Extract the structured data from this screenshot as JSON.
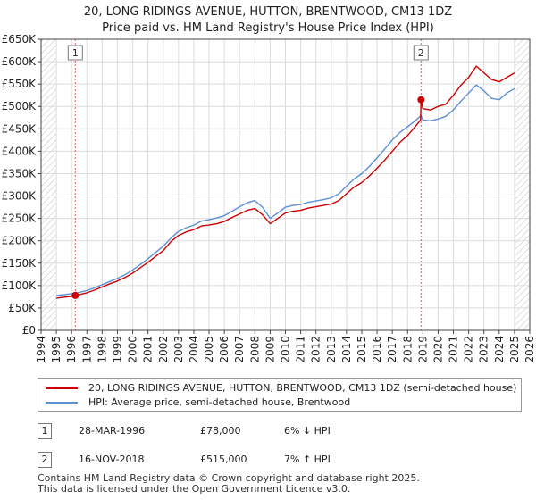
{
  "title": "20, LONG RIDINGS AVENUE, HUTTON, BRENTWOOD, CM13 1DZ",
  "subtitle": "Price paid vs. HM Land Registry's House Price Index (HPI)",
  "colors": {
    "property": "#cc0000",
    "hpi": "#5b8fd6",
    "grid": "#dcdcdc",
    "hatch": "#bbbbbb"
  },
  "legend": {
    "property_label": "20, LONG RIDINGS AVENUE, HUTTON, BRENTWOOD, CM13 1DZ (semi-detached house)",
    "hpi_label": "HPI: Average price, semi-detached house, Brentwood"
  },
  "transactions": [
    {
      "marker": "1",
      "date": "28-MAR-1996",
      "price": "£78,000",
      "hpi_change": "6% ↓ HPI"
    },
    {
      "marker": "2",
      "date": "16-NOV-2018",
      "price": "£515,000",
      "hpi_change": "7% ↑ HPI"
    }
  ],
  "footer": {
    "line1": "Contains HM Land Registry data © Crown copyright and database right 2025.",
    "line2": "This data is licensed under the Open Government Licence v3.0."
  },
  "chart_data": {
    "type": "line",
    "title": "20, LONG RIDINGS AVENUE, HUTTON, BRENTWOOD, CM13 1DZ",
    "subtitle": "Price paid vs. HM Land Registry's House Price Index (HPI)",
    "xlabel": "",
    "ylabel": "",
    "xlim": [
      1994,
      2026
    ],
    "ylim": [
      0,
      650000
    ],
    "x_ticks": [
      1994,
      1995,
      1996,
      1997,
      1998,
      1999,
      2000,
      2001,
      2002,
      2003,
      2004,
      2005,
      2006,
      2007,
      2008,
      2009,
      2010,
      2011,
      2012,
      2013,
      2014,
      2015,
      2016,
      2017,
      2018,
      2019,
      2020,
      2021,
      2022,
      2023,
      2024,
      2025,
      2026
    ],
    "y_ticks": [
      0,
      50000,
      100000,
      150000,
      200000,
      250000,
      300000,
      350000,
      400000,
      450000,
      500000,
      550000,
      600000,
      650000
    ],
    "y_tick_labels": [
      "£0",
      "£50K",
      "£100K",
      "£150K",
      "£200K",
      "£250K",
      "£300K",
      "£350K",
      "£400K",
      "£450K",
      "£500K",
      "£550K",
      "£600K",
      "£650K"
    ],
    "grid": true,
    "hatched_ranges": [
      [
        1994,
        1995.0
      ],
      [
        2025.0,
        2026
      ]
    ],
    "sale_points": [
      {
        "label": "1",
        "x": 1996.24,
        "y": 78000
      },
      {
        "label": "2",
        "x": 2018.88,
        "y": 515000
      }
    ],
    "series": [
      {
        "name": "20, LONG RIDINGS AVENUE, HUTTON, BRENTWOOD, CM13 1DZ (semi-detached house)",
        "color": "#cc0000",
        "x": [
          1995.0,
          1995.5,
          1996.0,
          1996.24,
          1996.5,
          1997.0,
          1997.5,
          1998.0,
          1998.5,
          1999.0,
          1999.5,
          2000.0,
          2000.5,
          2001.0,
          2001.5,
          2002.0,
          2002.5,
          2003.0,
          2003.5,
          2004.0,
          2004.5,
          2005.0,
          2005.5,
          2006.0,
          2006.5,
          2007.0,
          2007.5,
          2008.0,
          2008.5,
          2009.0,
          2009.5,
          2010.0,
          2010.5,
          2011.0,
          2011.5,
          2012.0,
          2012.5,
          2013.0,
          2013.5,
          2014.0,
          2014.5,
          2015.0,
          2015.5,
          2016.0,
          2016.5,
          2017.0,
          2017.5,
          2018.0,
          2018.5,
          2018.85,
          2018.88,
          2019.0,
          2019.5,
          2020.0,
          2020.5,
          2021.0,
          2021.5,
          2022.0,
          2022.5,
          2023.0,
          2023.5,
          2024.0,
          2024.5,
          2025.0
        ],
        "y": [
          72000,
          74000,
          76000,
          78000,
          80000,
          84000,
          90000,
          97000,
          104000,
          110000,
          118000,
          128000,
          140000,
          152000,
          165000,
          178000,
          198000,
          212000,
          220000,
          225000,
          233000,
          235000,
          238000,
          243000,
          252000,
          260000,
          268000,
          272000,
          258000,
          238000,
          250000,
          262000,
          266000,
          268000,
          273000,
          276000,
          279000,
          282000,
          290000,
          305000,
          320000,
          330000,
          345000,
          362000,
          380000,
          400000,
          420000,
          435000,
          455000,
          470000,
          515000,
          495000,
          492000,
          500000,
          505000,
          525000,
          548000,
          565000,
          590000,
          575000,
          560000,
          555000,
          565000,
          575000
        ]
      },
      {
        "name": "HPI: Average price, semi-detached house, Brentwood",
        "color": "#5b8fd6",
        "x": [
          1995.0,
          1995.5,
          1996.0,
          1996.24,
          1996.5,
          1997.0,
          1997.5,
          1998.0,
          1998.5,
          1999.0,
          1999.5,
          2000.0,
          2000.5,
          2001.0,
          2001.5,
          2002.0,
          2002.5,
          2003.0,
          2003.5,
          2004.0,
          2004.5,
          2005.0,
          2005.5,
          2006.0,
          2006.5,
          2007.0,
          2007.5,
          2008.0,
          2008.5,
          2009.0,
          2009.5,
          2010.0,
          2010.5,
          2011.0,
          2011.5,
          2012.0,
          2012.5,
          2013.0,
          2013.5,
          2014.0,
          2014.5,
          2015.0,
          2015.5,
          2016.0,
          2016.5,
          2017.0,
          2017.5,
          2018.0,
          2018.5,
          2018.88,
          2019.0,
          2019.5,
          2020.0,
          2020.5,
          2021.0,
          2021.5,
          2022.0,
          2022.5,
          2023.0,
          2023.5,
          2024.0,
          2024.5,
          2025.0
        ],
        "y": [
          78000,
          80000,
          82000,
          83000,
          85000,
          89000,
          95000,
          102000,
          109000,
          116000,
          124000,
          135000,
          147000,
          160000,
          174000,
          188000,
          206000,
          221000,
          229000,
          235000,
          244000,
          247000,
          251000,
          256000,
          266000,
          276000,
          285000,
          290000,
          275000,
          250000,
          262000,
          275000,
          279000,
          281000,
          286000,
          289000,
          292000,
          296000,
          305000,
          322000,
          338000,
          350000,
          366000,
          385000,
          405000,
          425000,
          442000,
          455000,
          468000,
          480000,
          470000,
          468000,
          472000,
          478000,
          492000,
          512000,
          530000,
          548000,
          535000,
          518000,
          515000,
          530000,
          540000
        ]
      }
    ]
  }
}
